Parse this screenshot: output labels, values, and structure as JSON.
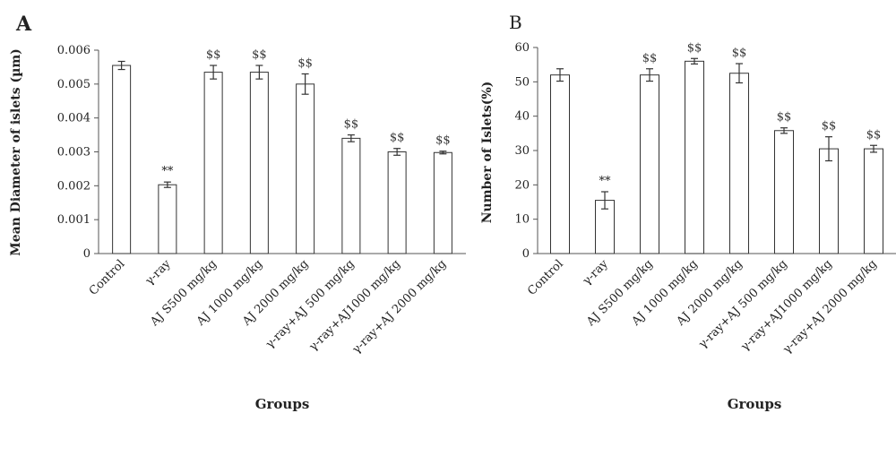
{
  "chart_data": [
    {
      "type": "bar",
      "panel_label": "A",
      "categories": [
        "Control",
        "γ-ray",
        "AJ S500 mg/kg",
        "AJ 1000 mg/kg",
        "AJ 2000 mg/kg",
        "γ-ray+AJ 500 mg/kg",
        "γ-ray+AJ1000 mg/kg",
        "γ-ray+AJ 2000 mg/kg"
      ],
      "values": [
        0.00555,
        0.00203,
        0.00535,
        0.00535,
        0.005,
        0.0034,
        0.003,
        0.00298
      ],
      "errors": [
        0.00012,
        8e-05,
        0.0002,
        0.0002,
        0.0003,
        0.0001,
        0.0001,
        4e-05
      ],
      "annotations": [
        "",
        "**",
        "$$",
        "$$",
        "$$",
        "$$",
        "$$",
        "$$"
      ],
      "ylabel": "Mean Diameter of islets (µm)",
      "xlabel": "Groups",
      "ylim": [
        0,
        0.006
      ],
      "yticks": [
        "0",
        "0.001",
        "0.002",
        "0.003",
        "0.004",
        "0.005",
        "0.006"
      ],
      "bar_color": "#ffffff",
      "edge_color": "#333333"
    },
    {
      "type": "bar",
      "panel_label": "B",
      "categories": [
        "Control",
        "γ-ray",
        "AJ S500 mg/kg",
        "AJ 1000 mg/kg",
        "AJ 2000 mg/kg",
        "γ-ray+AJ 500 mg/kg",
        "γ-ray+AJ1000 mg/kg",
        "γ-ray+AJ 2000 mg/kg"
      ],
      "values": [
        52,
        15.5,
        52,
        56,
        52.5,
        35.8,
        30.5,
        30.5
      ],
      "errors": [
        1.8,
        2.5,
        1.8,
        0.8,
        2.8,
        0.8,
        3.5,
        1.0
      ],
      "annotations": [
        "",
        "**",
        "$$",
        "$$",
        "$$",
        "$$",
        "$$",
        "$$"
      ],
      "ylabel": "Number of Islets(%)",
      "xlabel": "Groups",
      "ylim": [
        0,
        60
      ],
      "yticks": [
        "0",
        "10",
        "20",
        "30",
        "40",
        "50",
        "60"
      ],
      "bar_color": "#ffffff",
      "edge_color": "#333333"
    }
  ]
}
